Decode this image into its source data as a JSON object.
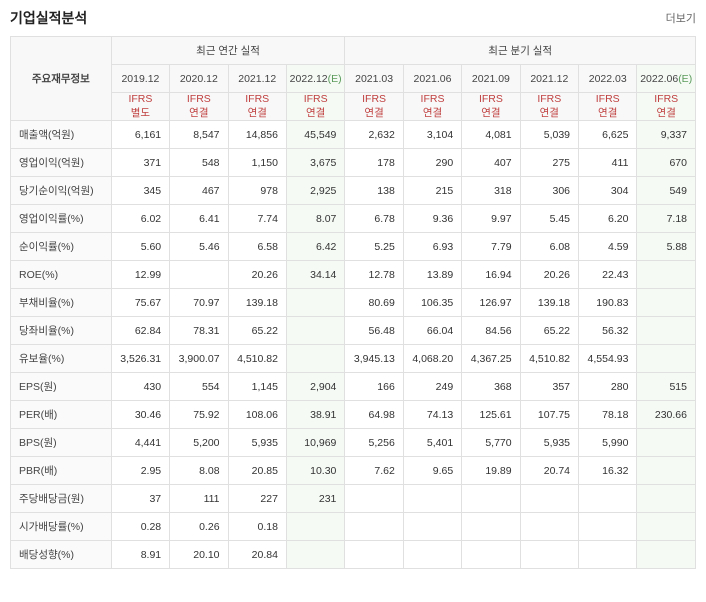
{
  "title": "기업실적분석",
  "more": "더보기",
  "headers": {
    "rowLabel": "주요재무정보",
    "annual": "최근 연간 실적",
    "quarter": "최근 분기 실적"
  },
  "periods": [
    {
      "label": "2019.12",
      "ifrs": "IFRS",
      "sub": "별도",
      "estimate": false
    },
    {
      "label": "2020.12",
      "ifrs": "IFRS",
      "sub": "연결",
      "estimate": false
    },
    {
      "label": "2021.12",
      "ifrs": "IFRS",
      "sub": "연결",
      "estimate": false
    },
    {
      "label": "2022.12",
      "suffix": "(E)",
      "ifrs": "IFRS",
      "sub": "연결",
      "estimate": true
    },
    {
      "label": "2021.03",
      "ifrs": "IFRS",
      "sub": "연결",
      "estimate": false
    },
    {
      "label": "2021.06",
      "ifrs": "IFRS",
      "sub": "연결",
      "estimate": false
    },
    {
      "label": "2021.09",
      "ifrs": "IFRS",
      "sub": "연결",
      "estimate": false
    },
    {
      "label": "2021.12",
      "ifrs": "IFRS",
      "sub": "연결",
      "estimate": false
    },
    {
      "label": "2022.03",
      "ifrs": "IFRS",
      "sub": "연결",
      "estimate": false
    },
    {
      "label": "2022.06",
      "suffix": "(E)",
      "ifrs": "IFRS",
      "sub": "연결",
      "estimate": true
    }
  ],
  "rows": [
    {
      "label": "매출액(억원)",
      "values": [
        "6,161",
        "8,547",
        "14,856",
        "45,549",
        "2,632",
        "3,104",
        "4,081",
        "5,039",
        "6,625",
        "9,337"
      ]
    },
    {
      "label": "영업이익(억원)",
      "values": [
        "371",
        "548",
        "1,150",
        "3,675",
        "178",
        "290",
        "407",
        "275",
        "411",
        "670"
      ]
    },
    {
      "label": "당기순이익(억원)",
      "values": [
        "345",
        "467",
        "978",
        "2,925",
        "138",
        "215",
        "318",
        "306",
        "304",
        "549"
      ]
    },
    {
      "label": "영업이익률(%)",
      "values": [
        "6.02",
        "6.41",
        "7.74",
        "8.07",
        "6.78",
        "9.36",
        "9.97",
        "5.45",
        "6.20",
        "7.18"
      ]
    },
    {
      "label": "순이익률(%)",
      "values": [
        "5.60",
        "5.46",
        "6.58",
        "6.42",
        "5.25",
        "6.93",
        "7.79",
        "6.08",
        "4.59",
        "5.88"
      ]
    },
    {
      "label": "ROE(%)",
      "values": [
        "12.99",
        "",
        "20.26",
        "34.14",
        "12.78",
        "13.89",
        "16.94",
        "20.26",
        "22.43",
        ""
      ]
    },
    {
      "label": "부채비율(%)",
      "values": [
        "75.67",
        "70.97",
        "139.18",
        "",
        "80.69",
        "106.35",
        "126.97",
        "139.18",
        "190.83",
        ""
      ]
    },
    {
      "label": "당좌비율(%)",
      "values": [
        "62.84",
        "78.31",
        "65.22",
        "",
        "56.48",
        "66.04",
        "84.56",
        "65.22",
        "56.32",
        ""
      ]
    },
    {
      "label": "유보율(%)",
      "values": [
        "3,526.31",
        "3,900.07",
        "4,510.82",
        "",
        "3,945.13",
        "4,068.20",
        "4,367.25",
        "4,510.82",
        "4,554.93",
        ""
      ]
    },
    {
      "label": "EPS(원)",
      "values": [
        "430",
        "554",
        "1,145",
        "2,904",
        "166",
        "249",
        "368",
        "357",
        "280",
        "515"
      ]
    },
    {
      "label": "PER(배)",
      "values": [
        "30.46",
        "75.92",
        "108.06",
        "38.91",
        "64.98",
        "74.13",
        "125.61",
        "107.75",
        "78.18",
        "230.66"
      ]
    },
    {
      "label": "BPS(원)",
      "values": [
        "4,441",
        "5,200",
        "5,935",
        "10,969",
        "5,256",
        "5,401",
        "5,770",
        "5,935",
        "5,990",
        ""
      ]
    },
    {
      "label": "PBR(배)",
      "values": [
        "2.95",
        "8.08",
        "20.85",
        "10.30",
        "7.62",
        "9.65",
        "19.89",
        "20.74",
        "16.32",
        ""
      ]
    },
    {
      "label": "주당배당금(원)",
      "values": [
        "37",
        "111",
        "227",
        "231",
        "",
        "",
        "",
        "",
        "",
        ""
      ]
    },
    {
      "label": "시가배당률(%)",
      "values": [
        "0.28",
        "0.26",
        "0.18",
        "",
        "",
        "",
        "",
        "",
        "",
        ""
      ]
    },
    {
      "label": "배당성향(%)",
      "values": [
        "8.91",
        "20.10",
        "20.84",
        "",
        "",
        "",
        "",
        "",
        "",
        ""
      ]
    }
  ],
  "estimateCols": [
    3,
    9
  ]
}
